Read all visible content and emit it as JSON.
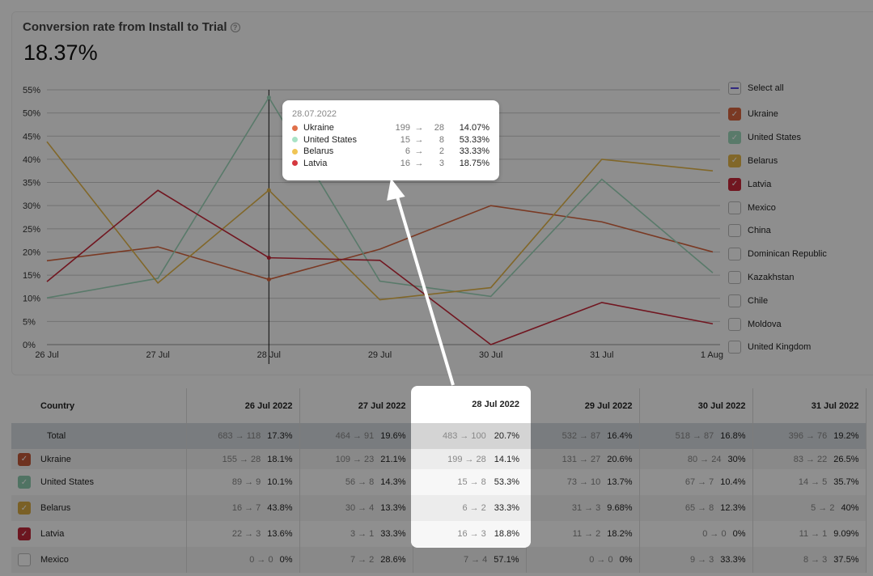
{
  "header": {
    "title": "Conversion rate from Install to Trial",
    "help_icon": "question-circle-icon",
    "value": "18.37%"
  },
  "chart_data": {
    "type": "line",
    "title": "Conversion rate from Install to Trial",
    "categories": [
      "26 Jul",
      "27 Jul",
      "28 Jul",
      "29 Jul",
      "30 Jul",
      "31 Jul",
      "1 Aug"
    ],
    "yticks": [
      "0%",
      "5%",
      "10%",
      "15%",
      "20%",
      "25%",
      "30%",
      "35%",
      "40%",
      "45%",
      "50%",
      "55%"
    ],
    "ylim": [
      0,
      55
    ],
    "grid": true,
    "legend": "right",
    "series": [
      {
        "name": "Ukraine",
        "color": "#d9663f",
        "values": [
          18.1,
          21.1,
          14.07,
          20.6,
          30,
          26.5,
          20
        ]
      },
      {
        "name": "United States",
        "color": "#9fd9bd",
        "values": [
          10.1,
          14.3,
          53.33,
          13.7,
          10.4,
          35.7,
          15.5
        ]
      },
      {
        "name": "Belarus",
        "color": "#e6b84a",
        "values": [
          43.8,
          13.3,
          33.33,
          9.68,
          12.3,
          40,
          37.5
        ]
      },
      {
        "name": "Latvia",
        "color": "#c9283a",
        "values": [
          13.6,
          33.3,
          18.75,
          18.2,
          0,
          9.09,
          4.5
        ]
      }
    ],
    "hover_index": 2
  },
  "legend": {
    "select_all": "Select all",
    "items": [
      {
        "label": "Ukraine",
        "checked": true,
        "color": "#d9663f"
      },
      {
        "label": "United States",
        "checked": true,
        "color": "#9fd9bd"
      },
      {
        "label": "Belarus",
        "checked": true,
        "color": "#e6b84a"
      },
      {
        "label": "Latvia",
        "checked": true,
        "color": "#c9283a"
      },
      {
        "label": "Mexico",
        "checked": false
      },
      {
        "label": "China",
        "checked": false
      },
      {
        "label": "Dominican Republic",
        "checked": false
      },
      {
        "label": "Kazakhstan",
        "checked": false
      },
      {
        "label": "Chile",
        "checked": false
      },
      {
        "label": "Moldova",
        "checked": false
      },
      {
        "label": "United Kingdom",
        "checked": false
      }
    ]
  },
  "tooltip": {
    "date": "28.07.2022",
    "rows": [
      {
        "name": "Ukraine",
        "from": "199",
        "to": "28",
        "pct": "14.07%",
        "color": "#e0704a"
      },
      {
        "name": "United States",
        "from": "15",
        "to": "8",
        "pct": "53.33%",
        "color": "#a8e3c6"
      },
      {
        "name": "Belarus",
        "from": "6",
        "to": "2",
        "pct": "33.33%",
        "color": "#f0c555"
      },
      {
        "name": "Latvia",
        "from": "16",
        "to": "3",
        "pct": "18.75%",
        "color": "#d5383f"
      }
    ]
  },
  "table": {
    "country_header": "Country",
    "arrow": "→",
    "dates": [
      "26 Jul 2022",
      "27 Jul 2022",
      "28 Jul 2022",
      "29 Jul 2022",
      "30 Jul 2022",
      "31 Jul 2022"
    ],
    "highlight_col": 2,
    "rows": [
      {
        "country": "Total",
        "check": null,
        "cells": [
          [
            "683",
            "118",
            "17.3%"
          ],
          [
            "464",
            "91",
            "19.6%"
          ],
          [
            "483",
            "100",
            "20.7%"
          ],
          [
            "532",
            "87",
            "16.4%"
          ],
          [
            "518",
            "87",
            "16.8%"
          ],
          [
            "396",
            "76",
            "19.2%"
          ]
        ]
      },
      {
        "country": "Ukraine",
        "check": "#c4593a",
        "cells": [
          [
            "155",
            "28",
            "18.1%"
          ],
          [
            "109",
            "23",
            "21.1%"
          ],
          [
            "199",
            "28",
            "14.1%"
          ],
          [
            "131",
            "27",
            "20.6%"
          ],
          [
            "80",
            "24",
            "30%"
          ],
          [
            "83",
            "22",
            "26.5%"
          ]
        ]
      },
      {
        "country": "United States",
        "check": "#8fcdb0",
        "cells": [
          [
            "89",
            "9",
            "10.1%"
          ],
          [
            "56",
            "8",
            "14.3%"
          ],
          [
            "15",
            "8",
            "53.3%"
          ],
          [
            "73",
            "10",
            "13.7%"
          ],
          [
            "67",
            "7",
            "10.4%"
          ],
          [
            "14",
            "5",
            "35.7%"
          ]
        ]
      },
      {
        "country": "Belarus",
        "check": "#d9ac44",
        "cells": [
          [
            "16",
            "7",
            "43.8%"
          ],
          [
            "30",
            "4",
            "13.3%"
          ],
          [
            "6",
            "2",
            "33.3%"
          ],
          [
            "31",
            "3",
            "9.68%"
          ],
          [
            "65",
            "8",
            "12.3%"
          ],
          [
            "5",
            "2",
            "40%"
          ]
        ]
      },
      {
        "country": "Latvia",
        "check": "#c0283a",
        "cells": [
          [
            "22",
            "3",
            "13.6%"
          ],
          [
            "3",
            "1",
            "33.3%"
          ],
          [
            "16",
            "3",
            "18.8%"
          ],
          [
            "11",
            "2",
            "18.2%"
          ],
          [
            "0",
            "0",
            "0%"
          ],
          [
            "11",
            "1",
            "9.09%"
          ]
        ]
      },
      {
        "country": "Mexico",
        "check": "",
        "cells": [
          [
            "0",
            "0",
            "0%"
          ],
          [
            "7",
            "2",
            "28.6%"
          ],
          [
            "7",
            "4",
            "57.1%"
          ],
          [
            "0",
            "0",
            "0%"
          ],
          [
            "9",
            "3",
            "33.3%"
          ],
          [
            "8",
            "3",
            "37.5%"
          ]
        ]
      }
    ]
  }
}
